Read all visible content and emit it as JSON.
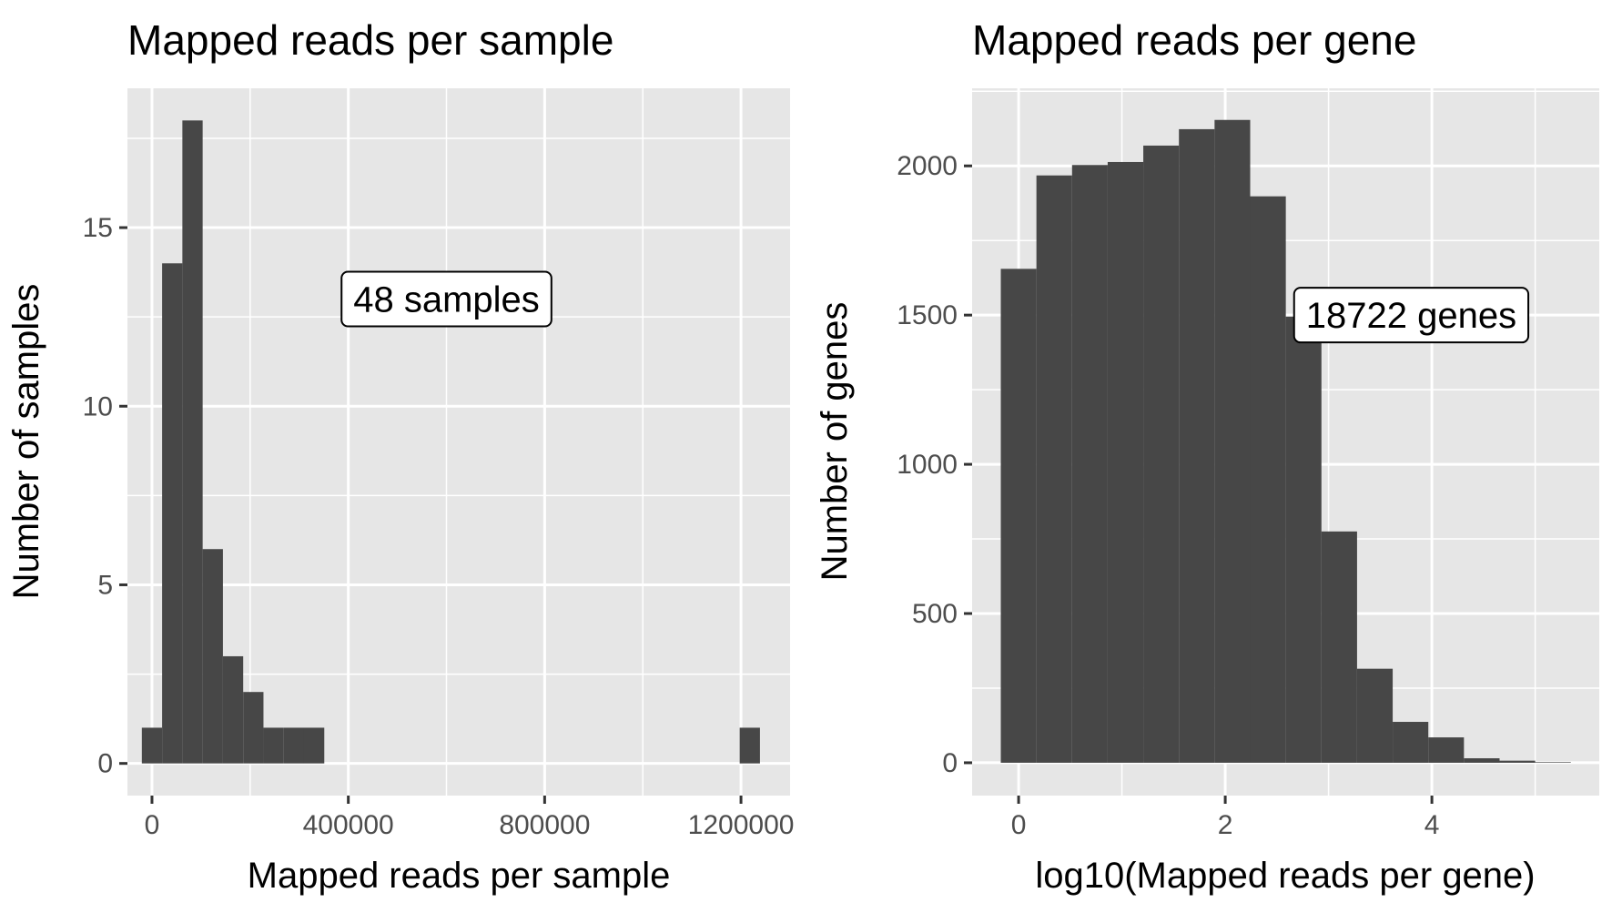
{
  "chart_data": [
    {
      "type": "bar",
      "title": "Mapped reads per sample",
      "xlabel": "Mapped reads per sample",
      "ylabel": "Number of samples",
      "xlim": [
        -50000,
        1300000
      ],
      "ylim": [
        -0.9,
        18.9
      ],
      "x_ticks": [
        0,
        400000,
        800000,
        1200000
      ],
      "y_ticks": [
        0,
        5,
        10,
        15
      ],
      "bin_width": 41300,
      "bins": [
        {
          "x": 0,
          "count": 1
        },
        {
          "x": 41300,
          "count": 14
        },
        {
          "x": 82600,
          "count": 18
        },
        {
          "x": 123900,
          "count": 6
        },
        {
          "x": 165200,
          "count": 3
        },
        {
          "x": 206500,
          "count": 2
        },
        {
          "x": 247800,
          "count": 1
        },
        {
          "x": 289100,
          "count": 1
        },
        {
          "x": 330400,
          "count": 1
        },
        {
          "x": 1218000,
          "count": 1
        }
      ],
      "annotation": {
        "text": "48 samples",
        "x": 600000,
        "y": 13
      },
      "grid": true,
      "bar_color": "#474747"
    },
    {
      "type": "bar",
      "title": "Mapped reads per gene",
      "xlabel": "log10(Mapped reads per gene)",
      "ylabel": "Number of genes",
      "xlim": [
        -0.45,
        5.62
      ],
      "ylim": [
        -110,
        2260
      ],
      "x_ticks": [
        0,
        2,
        4
      ],
      "y_ticks": [
        0,
        500,
        1000,
        1500,
        2000
      ],
      "bin_width": 0.3448,
      "bins": [
        {
          "x": 0.0,
          "count": 1655
        },
        {
          "x": 0.3448,
          "count": 1968
        },
        {
          "x": 0.6897,
          "count": 2003
        },
        {
          "x": 1.0345,
          "count": 2013
        },
        {
          "x": 1.3793,
          "count": 2068
        },
        {
          "x": 1.7241,
          "count": 2123
        },
        {
          "x": 2.069,
          "count": 2154
        },
        {
          "x": 2.4138,
          "count": 1898
        },
        {
          "x": 2.7586,
          "count": 1495
        },
        {
          "x": 3.1034,
          "count": 775
        },
        {
          "x": 3.4483,
          "count": 315
        },
        {
          "x": 3.7931,
          "count": 137
        },
        {
          "x": 4.1379,
          "count": 85
        },
        {
          "x": 4.4828,
          "count": 15
        },
        {
          "x": 4.8276,
          "count": 7
        },
        {
          "x": 5.1724,
          "count": 2
        }
      ],
      "annotation": {
        "text": "18722 genes",
        "x": 3.8,
        "y": 1500
      },
      "grid": true,
      "bar_color": "#474747"
    }
  ],
  "colors": {
    "panel": "#e6e6e6",
    "grid": "#ffffff",
    "bar": "#474747",
    "tick_text": "#4d4d4d"
  }
}
